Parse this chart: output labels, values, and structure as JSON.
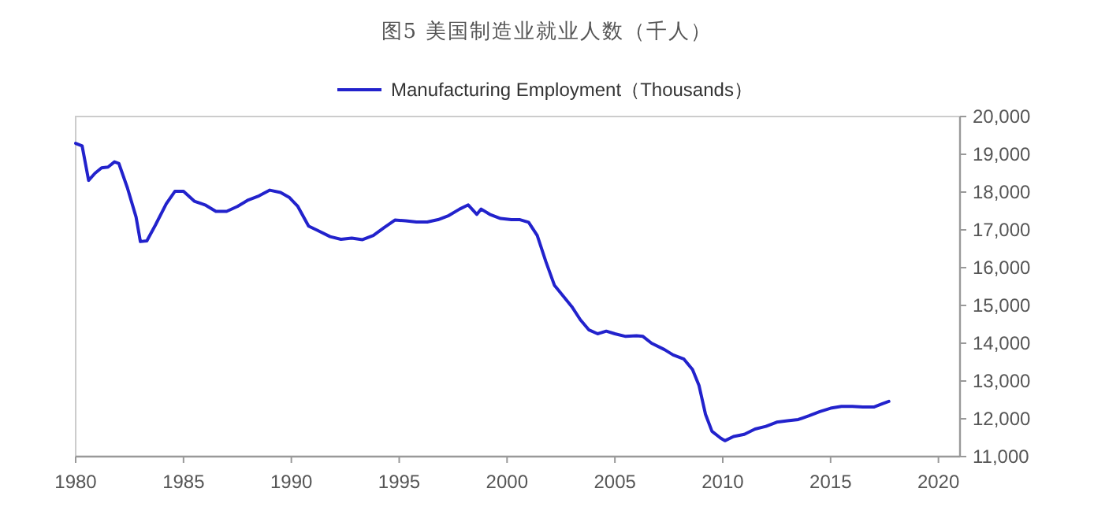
{
  "chart_data": {
    "type": "line",
    "title": "图5 美国制造业就业人数（千人）",
    "legend": "top",
    "grid": false,
    "marker": "none",
    "line_style": "solid",
    "xlim": [
      1980,
      2021
    ],
    "xticks": [
      1980,
      1985,
      1990,
      1995,
      2000,
      2005,
      2010,
      2015,
      2020
    ],
    "ylim": [
      11000,
      20000
    ],
    "yticks": [
      {
        "value": 11000,
        "label": "11,000"
      },
      {
        "value": 12000,
        "label": "12,000"
      },
      {
        "value": 13000,
        "label": "13,000"
      },
      {
        "value": 14000,
        "label": "14,000"
      },
      {
        "value": 15000,
        "label": "15,000"
      },
      {
        "value": 16000,
        "label": "16,000"
      },
      {
        "value": 17000,
        "label": "17,000"
      },
      {
        "value": 18000,
        "label": "18,000"
      },
      {
        "value": 19000,
        "label": "19,000"
      },
      {
        "value": 20000,
        "label": "20,000"
      }
    ],
    "x": [
      1980.0,
      1980.3,
      1980.6,
      1980.9,
      1981.2,
      1981.5,
      1981.8,
      1982.0,
      1982.4,
      1982.8,
      1983.0,
      1983.3,
      1983.7,
      1984.2,
      1984.6,
      1985.0,
      1985.5,
      1986.0,
      1986.5,
      1987.0,
      1987.5,
      1988.0,
      1988.5,
      1989.0,
      1989.5,
      1989.9,
      1990.3,
      1990.8,
      1991.2,
      1991.8,
      1992.3,
      1992.8,
      1993.3,
      1993.8,
      1994.3,
      1994.8,
      1995.3,
      1995.8,
      1996.3,
      1996.8,
      1997.3,
      1997.8,
      1998.2,
      1998.6,
      1998.8,
      1999.2,
      1999.7,
      2000.2,
      2000.6,
      2001.0,
      2001.4,
      2001.8,
      2002.2,
      2002.6,
      2003.0,
      2003.4,
      2003.8,
      2004.2,
      2004.6,
      2005.0,
      2005.5,
      2006.0,
      2006.3,
      2006.7,
      2007.3,
      2007.7,
      2008.2,
      2008.6,
      2008.9,
      2009.2,
      2009.5,
      2009.9,
      2010.1,
      2010.5,
      2011.0,
      2011.5,
      2012.0,
      2012.5,
      2013.0,
      2013.5,
      2014.0,
      2014.5,
      2015.0,
      2015.5,
      2016.0,
      2016.5,
      2017.0,
      2017.4,
      2017.7
    ],
    "series": [
      {
        "name": "Manufacturing Employment（Thousands）",
        "color": "#2222cc",
        "values": [
          19290,
          19220,
          18310,
          18500,
          18640,
          18660,
          18800,
          18760,
          18110,
          17340,
          16690,
          16710,
          17130,
          17690,
          18020,
          18020,
          17760,
          17660,
          17490,
          17490,
          17620,
          17790,
          17900,
          18050,
          17990,
          17860,
          17620,
          17100,
          16990,
          16820,
          16750,
          16780,
          16740,
          16850,
          17060,
          17260,
          17240,
          17210,
          17210,
          17270,
          17380,
          17550,
          17660,
          17410,
          17550,
          17410,
          17300,
          17270,
          17270,
          17200,
          16850,
          16160,
          15530,
          15250,
          14970,
          14620,
          14350,
          14250,
          14320,
          14250,
          14180,
          14200,
          14180,
          14000,
          13830,
          13690,
          13580,
          13300,
          12880,
          12120,
          11670,
          11490,
          11420,
          11530,
          11590,
          11730,
          11800,
          11910,
          11950,
          11980,
          12080,
          12190,
          12280,
          12330,
          12330,
          12310,
          12310,
          12400,
          12460
        ]
      }
    ]
  }
}
